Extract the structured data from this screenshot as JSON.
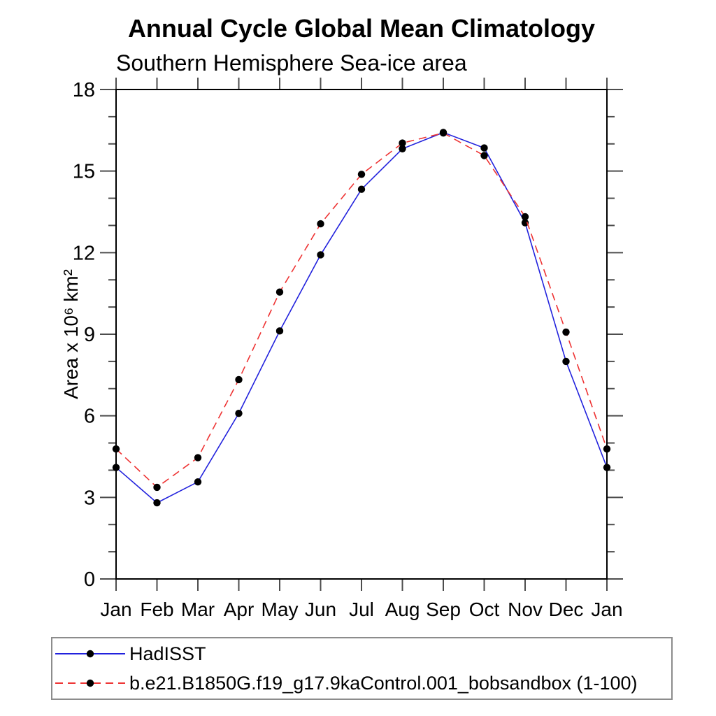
{
  "chart_data": {
    "type": "line",
    "title": "Annual Cycle Global Mean Climatology",
    "subtitle": "Southern Hemisphere Sea-ice area",
    "xlabel": "",
    "ylabel": "Area x 10⁶ km²",
    "categories": [
      "Jan",
      "Feb",
      "Mar",
      "Apr",
      "May",
      "Jun",
      "Jul",
      "Aug",
      "Sep",
      "Oct",
      "Nov",
      "Dec",
      "Jan"
    ],
    "ylim": [
      0,
      18
    ],
    "y_major_ticks": [
      0,
      3,
      6,
      9,
      12,
      15,
      18
    ],
    "y_minor_step": 1,
    "grid": false,
    "legend_position": "bottom",
    "axis_color": "#000000",
    "tick_color": "#4d4d4d",
    "series": [
      {
        "name": "HadISST",
        "style": "solid",
        "color": "#2222dd",
        "marker": "circle",
        "marker_color": "#000000",
        "values": [
          4.1,
          2.8,
          3.57,
          6.09,
          9.12,
          11.92,
          14.33,
          15.82,
          16.42,
          15.85,
          13.1,
          8.0,
          4.1
        ]
      },
      {
        "name": "b.e21.B1850G.f19_g17.9kaControl.001_bobsandbox (1-100)",
        "style": "dashed",
        "color": "#ee3333",
        "marker": "circle",
        "marker_color": "#000000",
        "values": [
          4.78,
          3.37,
          4.46,
          7.33,
          10.55,
          13.06,
          14.88,
          16.03,
          16.4,
          15.57,
          13.32,
          9.08,
          4.78
        ]
      }
    ]
  }
}
